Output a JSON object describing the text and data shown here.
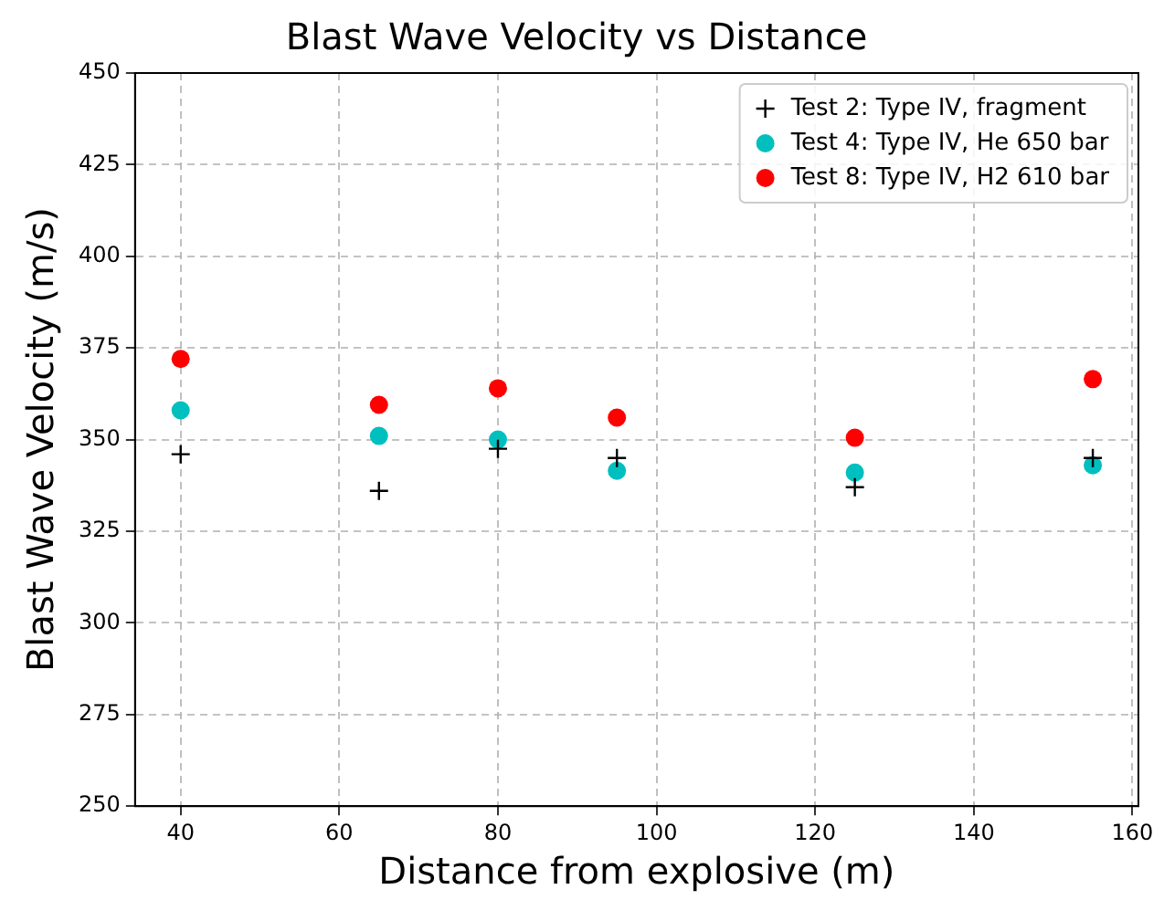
{
  "chart_data": {
    "type": "scatter",
    "title": "Blast Wave Velocity vs Distance",
    "xlabel": "Distance from explosive (m)",
    "ylabel": "Blast Wave Velocity (m/s)",
    "x": [
      40,
      65,
      80,
      95,
      125,
      155
    ],
    "series": [
      {
        "name": "Test 2: Type IV, fragment",
        "color": "#000000",
        "marker": "cross",
        "values": [
          346,
          336,
          347.5,
          345,
          337,
          345
        ]
      },
      {
        "name": "Test 4: Type IV, He 650 bar",
        "color": "#00bfbf",
        "marker": "circle",
        "values": [
          358,
          351,
          350,
          341.5,
          341,
          343
        ]
      },
      {
        "name": "Test 8: Type IV, H2 610 bar",
        "color": "#ff0000",
        "marker": "circle",
        "values": [
          372,
          359.5,
          364,
          356,
          350.5,
          366.5
        ]
      }
    ],
    "xlim": [
      34.25,
      160.75
    ],
    "xticks": [
      40,
      60,
      80,
      100,
      120,
      140,
      160
    ],
    "ylim": [
      250,
      450
    ],
    "yticks": [
      250,
      275,
      300,
      325,
      350,
      375,
      400,
      425,
      450
    ],
    "grid": true,
    "legend": "top right"
  }
}
